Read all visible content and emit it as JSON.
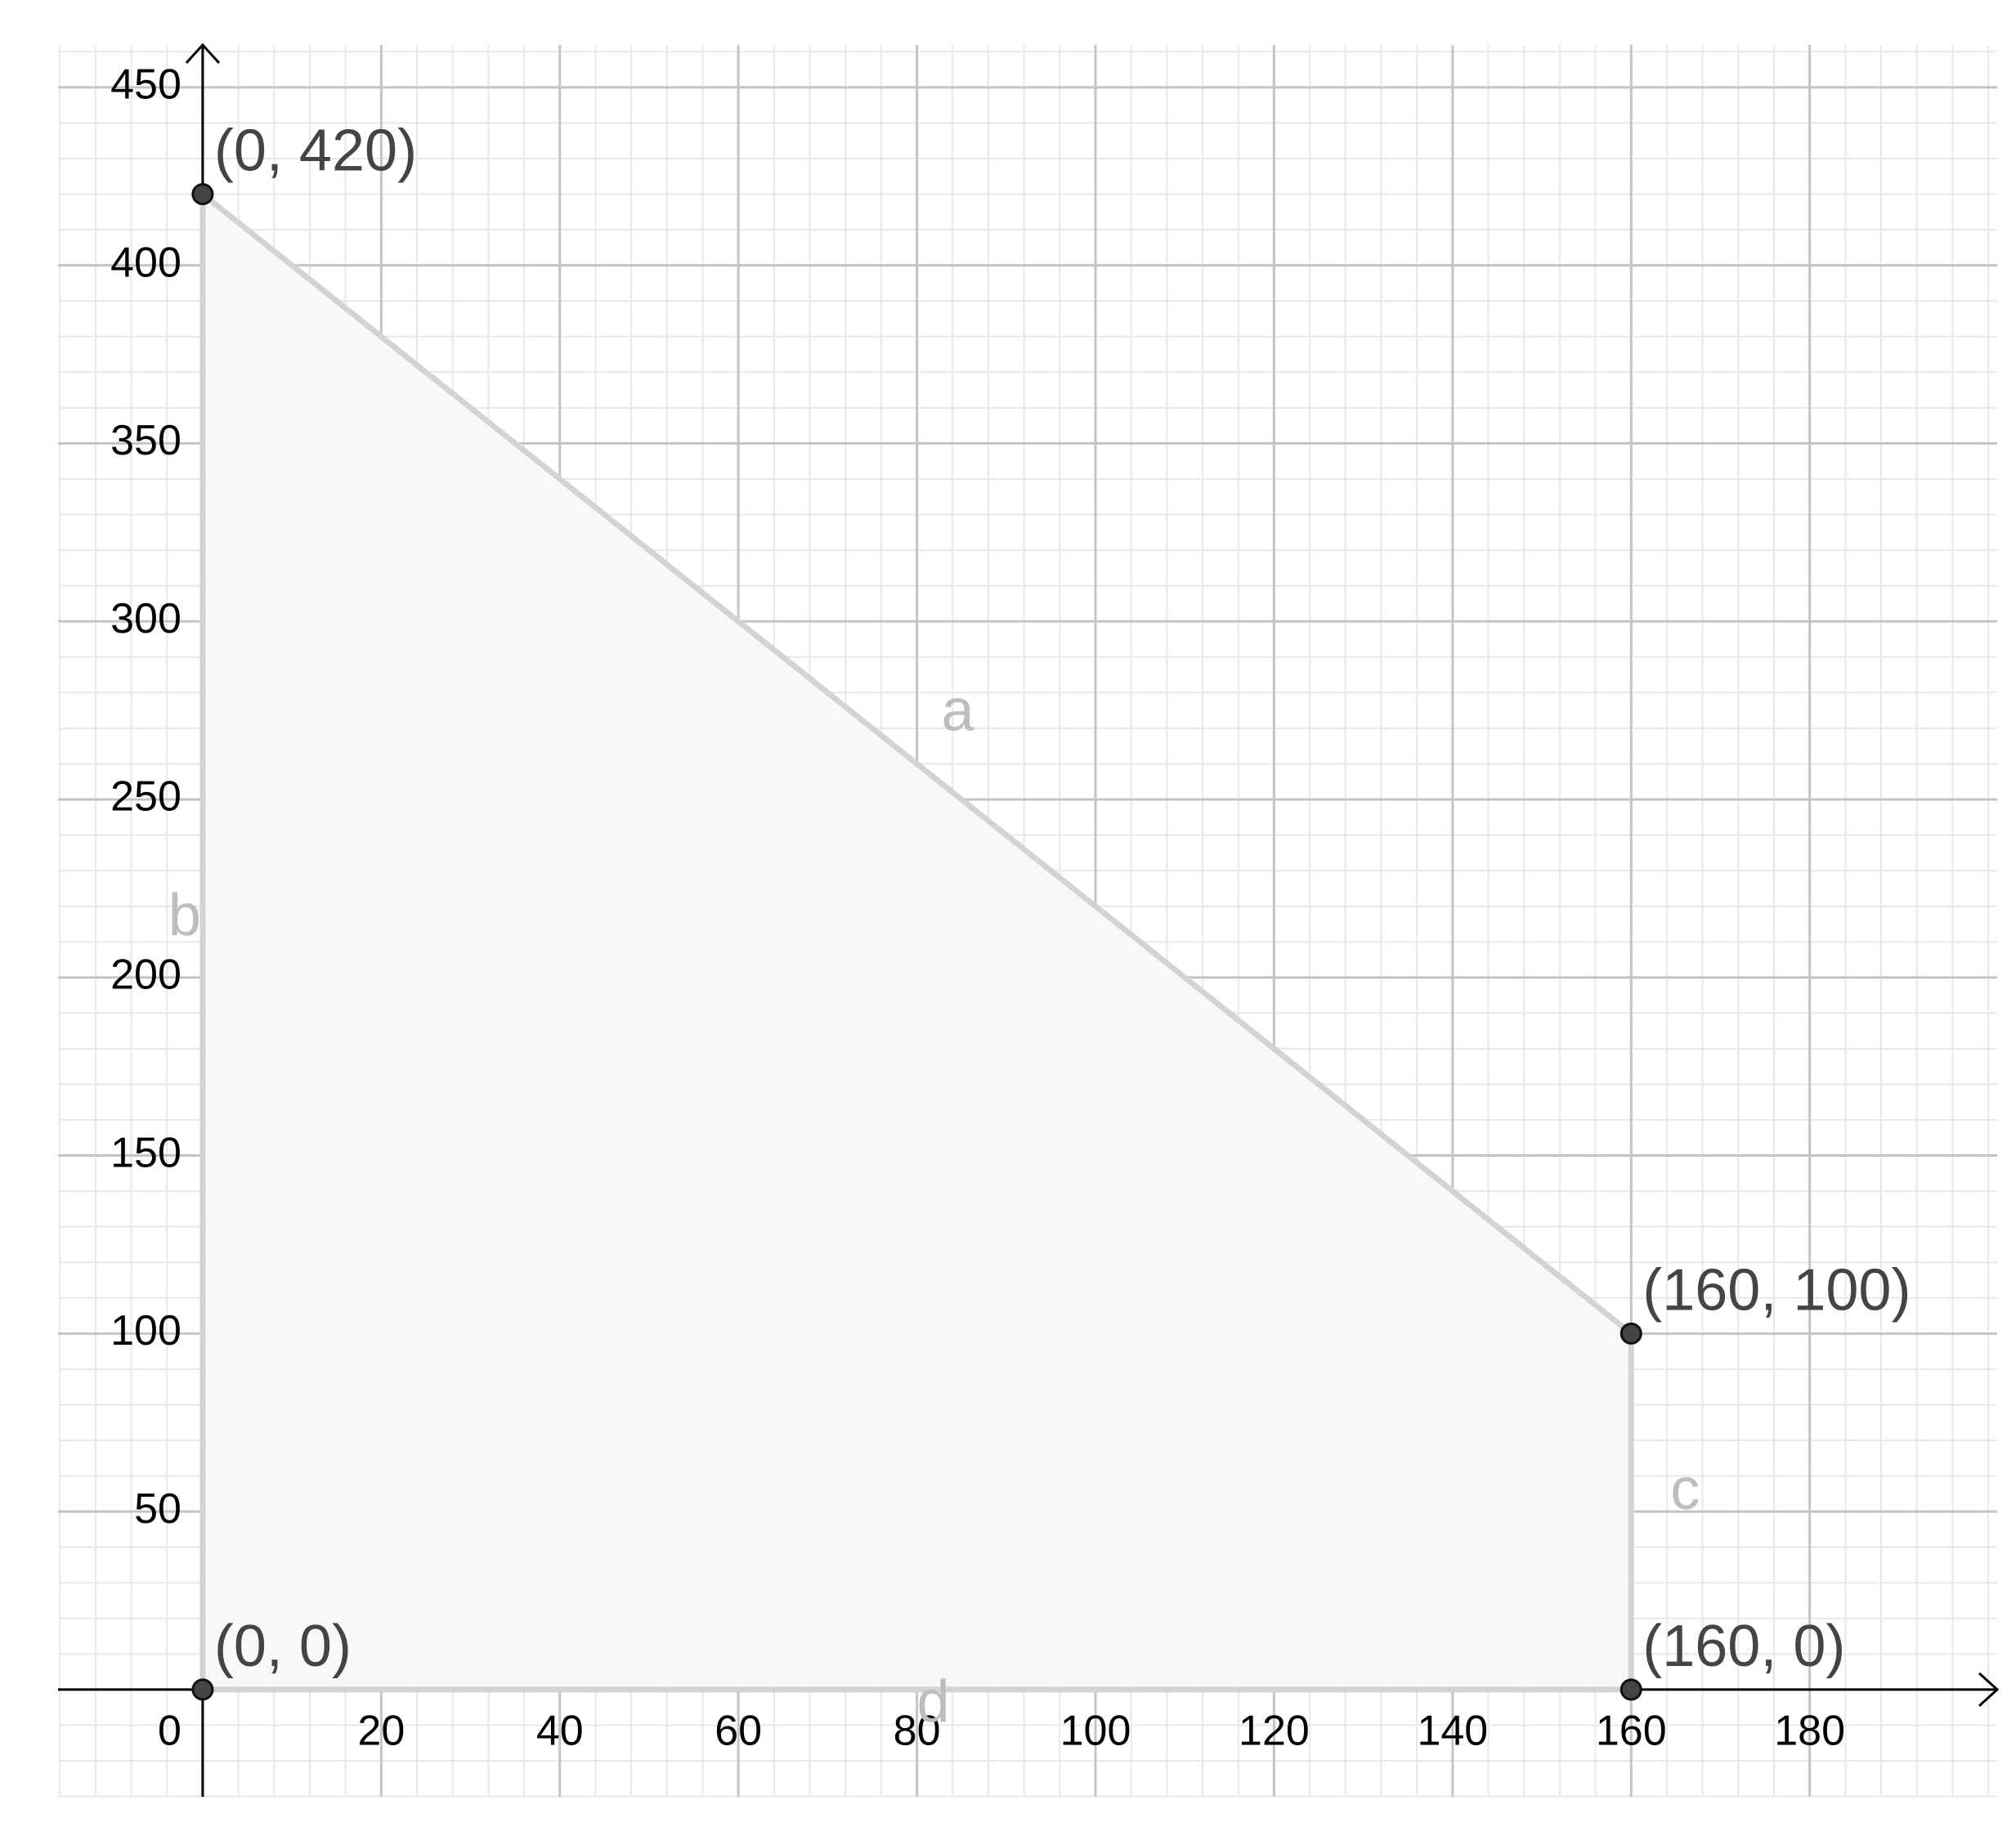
{
  "chart_data": {
    "type": "polygon",
    "x": [
      0,
      0,
      160,
      160
    ],
    "y": [
      0,
      420,
      100,
      0
    ],
    "point_labels": [
      "(0, 0)",
      "(0, 420)",
      "(160, 100)",
      "(160, 0)"
    ],
    "segment_labels": [
      "b",
      "a",
      "c",
      "d"
    ],
    "xlim": [
      -16.2,
      201
    ],
    "ylim": [
      -30.1,
      461.9
    ],
    "xticks": [
      0,
      20,
      40,
      60,
      80,
      100,
      120,
      140,
      160,
      180
    ],
    "yticks": [
      50,
      100,
      150,
      200,
      250,
      300,
      350,
      400,
      450
    ],
    "grid": true,
    "fill_color": "#f8f8f8",
    "edge_color": "#d3d3d3",
    "point_color": "#444444"
  }
}
